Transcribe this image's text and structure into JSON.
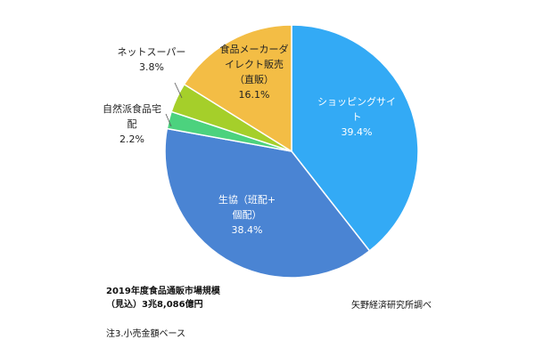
{
  "chart_data": {
    "type": "pie",
    "start_angle_deg": 0,
    "direction": "clockwise",
    "slices": [
      {
        "key": "shopping",
        "label_lines": [
          "ショッピングサイ",
          "ト"
        ],
        "value": 39.4,
        "value_text": "39.4%",
        "color": "#33aaf5",
        "label_style": "inside-light"
      },
      {
        "key": "coop",
        "label_lines": [
          "生協（班配+",
          "個配）"
        ],
        "value": 38.4,
        "value_text": "38.4%",
        "color": "#4a84d3",
        "label_style": "inside-light"
      },
      {
        "key": "natural",
        "label_lines": [
          "自然派食品宅",
          "配"
        ],
        "value": 2.2,
        "value_text": "2.2%",
        "color": "#4cd27e",
        "label_style": "outside"
      },
      {
        "key": "netsuper",
        "label_lines": [
          "ネットスーパー"
        ],
        "value": 3.8,
        "value_text": "3.8%",
        "color": "#a5cf2a",
        "label_style": "outside"
      },
      {
        "key": "maker",
        "label_lines": [
          "食品メーカーダ",
          "イレクト販売",
          "（直販）"
        ],
        "value": 16.1,
        "value_text": "16.1%",
        "color": "#f3bd45",
        "label_style": "inside-dark"
      }
    ]
  },
  "notes": {
    "market_title": "2019年度食品通販市場規模",
    "market_value": "（見込）3兆8,086億円",
    "source": "矢野経済研究所調べ",
    "footnote": "注3.小売金額ベース"
  }
}
